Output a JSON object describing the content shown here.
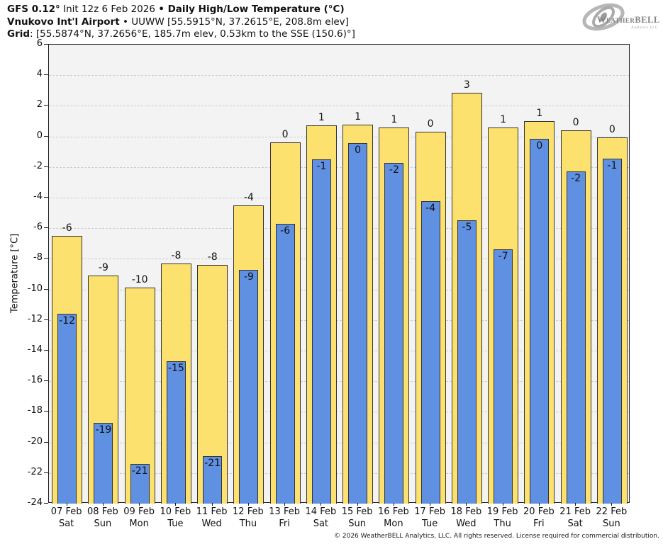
{
  "header": {
    "line1_bold1": "GFS 0.12°",
    "line1_normal": " Init 12z 6 Feb 2026 ",
    "line1_bold2": "• Daily High/Low Temperature (°C)",
    "line2_bold": "Vnukovo Int'l Airport",
    "line2_normal": " • UUWW [55.5915°N, 37.2615°E, 208.8m elev]",
    "line3_bold": "Grid",
    "line3_normal": ": [55.5874°N, 37.2656°E, 185.7m elev, 0.53km to the SSE (150.6)°]"
  },
  "logo": {
    "text_main": "WeatherBELL",
    "text_sub": "Analytics LLC"
  },
  "chart_data": {
    "type": "bar",
    "title": "GFS 0.12° Init 12z 6 Feb 2026 • Daily High/Low Temperature (°C)",
    "station": "Vnukovo Int'l Airport • UUWW [55.5915°N, 37.2615°E, 208.8m elev]",
    "grid_point": "[55.5874°N, 37.2656°E, 185.7m elev, 0.53km to the SSE (150.6)°]",
    "ylabel": "Temperature [°C]",
    "ylim": [
      -24,
      6
    ],
    "ytick_step": 2,
    "grid": true,
    "plot_bg": "#f3f3f3",
    "gridline_color": "#cdcdcd",
    "categories": [
      {
        "date": "07 Feb",
        "dow": "Sat"
      },
      {
        "date": "08 Feb",
        "dow": "Sun"
      },
      {
        "date": "09 Feb",
        "dow": "Mon"
      },
      {
        "date": "10 Feb",
        "dow": "Tue"
      },
      {
        "date": "11 Feb",
        "dow": "Wed"
      },
      {
        "date": "12 Feb",
        "dow": "Thu"
      },
      {
        "date": "13 Feb",
        "dow": "Fri"
      },
      {
        "date": "14 Feb",
        "dow": "Sat"
      },
      {
        "date": "15 Feb",
        "dow": "Sun"
      },
      {
        "date": "16 Feb",
        "dow": "Mon"
      },
      {
        "date": "17 Feb",
        "dow": "Tue"
      },
      {
        "date": "18 Feb",
        "dow": "Wed"
      },
      {
        "date": "19 Feb",
        "dow": "Thu"
      },
      {
        "date": "20 Feb",
        "dow": "Fri"
      },
      {
        "date": "21 Feb",
        "dow": "Sat"
      },
      {
        "date": "22 Feb",
        "dow": "Sun"
      }
    ],
    "series": [
      {
        "name": "Daily High",
        "color": "#fce16e",
        "labels": [
          "-6",
          "-9",
          "-10",
          "-8",
          "-8",
          "-4",
          "0",
          "1",
          "1",
          "1",
          "0",
          "3",
          "1",
          "1",
          "0",
          "0"
        ],
        "values": [
          -6.5,
          -9.1,
          -9.9,
          -8.3,
          -8.4,
          -4.5,
          -0.4,
          0.7,
          0.75,
          0.6,
          0.3,
          2.85,
          0.6,
          1.0,
          0.4,
          -0.05
        ]
      },
      {
        "name": "Daily Low",
        "color": "#5f90e2",
        "labels": [
          "-12",
          "-19",
          "-21",
          "-15",
          "-21",
          "-9",
          "-6",
          "-1",
          "0",
          "-2",
          "-4",
          "-5",
          "-7",
          "0",
          "-2",
          "-1"
        ],
        "values": [
          -11.6,
          -18.7,
          -21.4,
          -14.7,
          -20.9,
          -8.7,
          -5.7,
          -1.5,
          -0.45,
          -1.75,
          -4.25,
          -5.5,
          -7.4,
          -0.15,
          -2.3,
          -1.45
        ]
      }
    ]
  },
  "footer": {
    "copyright": "© 2026 WeatherBELL Analytics, LLC. All rights reserved. License required for commercial distribution."
  }
}
